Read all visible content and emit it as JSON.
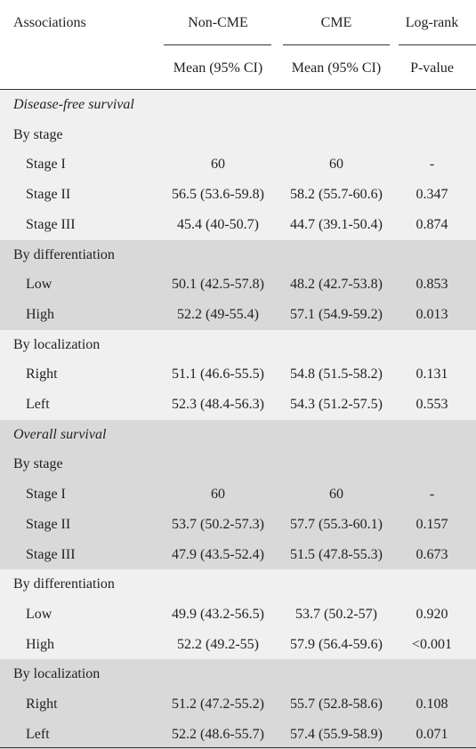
{
  "header": {
    "col_associations": "Associations",
    "col_noncme": "Non-CME",
    "col_cme": "CME",
    "col_logrank": "Log-rank",
    "sub_noncme": "Mean (95% CI)",
    "sub_cme": "Mean (95% CI)",
    "sub_logrank": "P-value"
  },
  "colors": {
    "band_light": "#f0f0f0",
    "band_dark": "#d9d9d9",
    "rule": "#333333",
    "text": "#222222"
  },
  "rows": [
    {
      "label": "Disease-free survival",
      "kind": "section",
      "band": 0
    },
    {
      "label": "By stage",
      "kind": "group",
      "band": 0
    },
    {
      "label": "Stage I",
      "kind": "item",
      "band": 0,
      "noncme": "60",
      "cme": "60",
      "p": "-"
    },
    {
      "label": "Stage II",
      "kind": "item",
      "band": 0,
      "noncme": "56.5 (53.6-59.8)",
      "cme": "58.2 (55.7-60.6)",
      "p": "0.347"
    },
    {
      "label": "Stage III",
      "kind": "item",
      "band": 0,
      "noncme": "45.4 (40-50.7)",
      "cme": "44.7 (39.1-50.4)",
      "p": "0.874"
    },
    {
      "label": "By differentiation",
      "kind": "group",
      "band": 1
    },
    {
      "label": "Low",
      "kind": "item",
      "band": 1,
      "noncme": "50.1 (42.5-57.8)",
      "cme": "48.2 (42.7-53.8)",
      "p": "0.853"
    },
    {
      "label": "High",
      "kind": "item",
      "band": 1,
      "noncme": "52.2 (49-55.4)",
      "cme": "57.1 (54.9-59.2)",
      "p": "0.013"
    },
    {
      "label": "By localization",
      "kind": "group",
      "band": 0
    },
    {
      "label": "Right",
      "kind": "item",
      "band": 0,
      "noncme": "51.1 (46.6-55.5)",
      "cme": "54.8 (51.5-58.2)",
      "p": "0.131"
    },
    {
      "label": "Left",
      "kind": "item",
      "band": 0,
      "noncme": "52.3 (48.4-56.3)",
      "cme": "54.3 (51.2-57.5)",
      "p": "0.553"
    },
    {
      "label": "Overall survival",
      "kind": "section",
      "band": 1
    },
    {
      "label": "By stage",
      "kind": "group",
      "band": 1
    },
    {
      "label": "Stage I",
      "kind": "item",
      "band": 1,
      "noncme": "60",
      "cme": "60",
      "p": "-"
    },
    {
      "label": "Stage II",
      "kind": "item",
      "band": 1,
      "noncme": "53.7 (50.2-57.3)",
      "cme": "57.7 (55.3-60.1)",
      "p": "0.157"
    },
    {
      "label": "Stage III",
      "kind": "item",
      "band": 1,
      "noncme": "47.9 (43.5-52.4)",
      "cme": "51.5 (47.8-55.3)",
      "p": "0.673"
    },
    {
      "label": "By differentiation",
      "kind": "group",
      "band": 0
    },
    {
      "label": "Low",
      "kind": "item",
      "band": 0,
      "noncme": "49.9 (43.2-56.5)",
      "cme": "53.7 (50.2-57)",
      "p": "0.920"
    },
    {
      "label": "High",
      "kind": "item",
      "band": 0,
      "noncme": "52.2 (49.2-55)",
      "cme": "57.9 (56.4-59.6)",
      "p": "<0.001"
    },
    {
      "label": "By localization",
      "kind": "group",
      "band": 1
    },
    {
      "label": "Right",
      "kind": "item",
      "band": 1,
      "noncme": "51.2 (47.2-55.2)",
      "cme": "55.7 (52.8-58.6)",
      "p": "0.108"
    },
    {
      "label": "Left",
      "kind": "item",
      "band": 1,
      "noncme": "52.2 (48.6-55.7)",
      "cme": "57.4 (55.9-58.9)",
      "p": "0.071"
    }
  ]
}
